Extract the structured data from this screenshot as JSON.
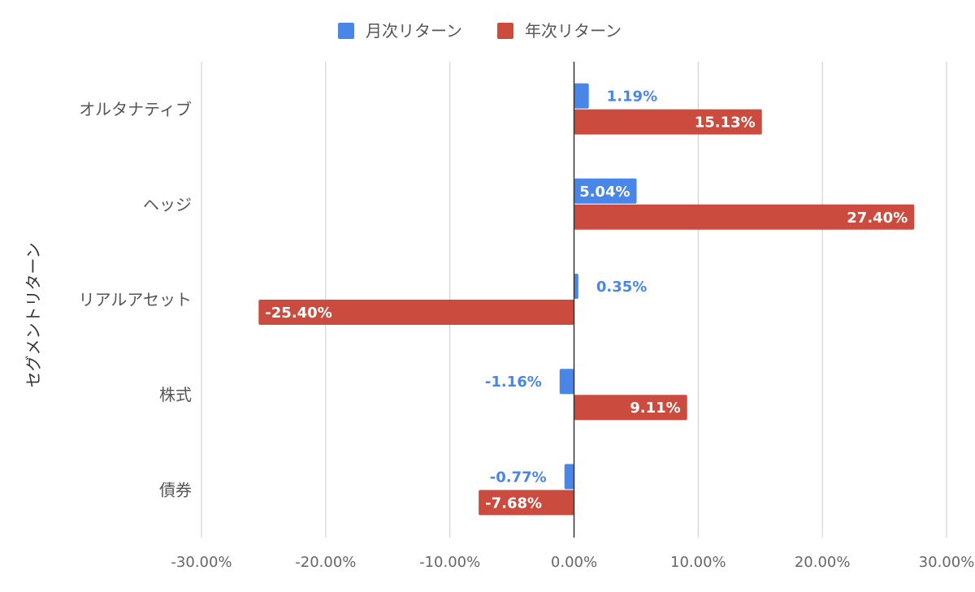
{
  "chart_data": {
    "type": "bar",
    "orientation": "horizontal",
    "ylabel": "セグメントリターン",
    "xlabel": "",
    "categories": [
      "オルタナティブ",
      "ヘッジ",
      "リアルアセット",
      "株式",
      "債券"
    ],
    "series": [
      {
        "name": "月次リターン",
        "color": "#4a86e8",
        "values": [
          1.19,
          5.04,
          0.35,
          -1.16,
          -0.77
        ],
        "labels": [
          "1.19%",
          "5.04%",
          "0.35%",
          "-1.16%",
          "-0.77%"
        ]
      },
      {
        "name": "年次リターン",
        "color": "#cc4b3f",
        "values": [
          15.13,
          27.4,
          -25.4,
          9.11,
          -7.68
        ],
        "labels": [
          "15.13%",
          "27.40%",
          "-25.40%",
          "9.11%",
          "-7.68%"
        ]
      }
    ],
    "xlim": [
      -30,
      30
    ],
    "xticks": [
      -30,
      -20,
      -10,
      0,
      10,
      20,
      30
    ],
    "xtick_labels": [
      "-30.00%",
      "-20.00%",
      "-10.00%",
      "0.00%",
      "10.00%",
      "20.00%",
      "30.00%"
    ],
    "grid": true,
    "legend_position": "top-center"
  }
}
